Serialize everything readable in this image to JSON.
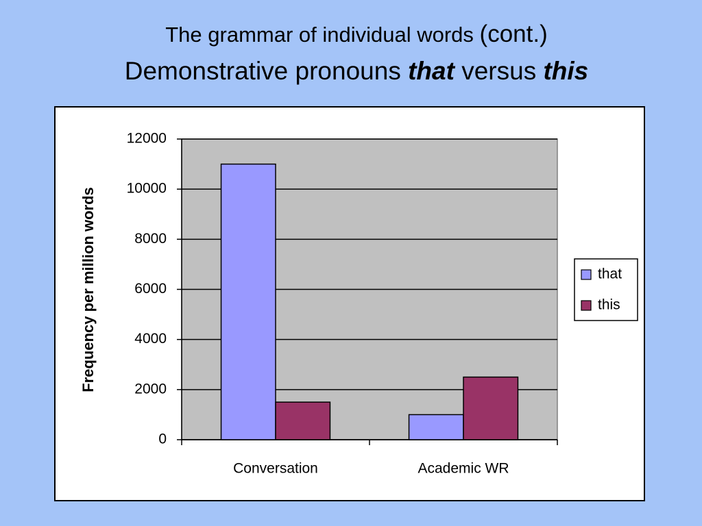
{
  "title": {
    "line1": [
      "The grammar of individual words",
      "(cont.)"
    ],
    "line2": [
      "Demonstrative pronouns",
      "that",
      "versus",
      "this"
    ]
  },
  "chart_data": {
    "type": "bar",
    "y_label": "Frequency per million words",
    "categories": [
      "Conversation",
      "Academic WR"
    ],
    "series": [
      {
        "name": "that",
        "color": "#9999ff",
        "values": [
          11000,
          1000
        ]
      },
      {
        "name": "this",
        "color": "#993366",
        "values": [
          1500,
          2500
        ]
      }
    ],
    "ylim": [
      0,
      12000
    ],
    "yticks": [
      0,
      2000,
      4000,
      6000,
      8000,
      10000,
      12000
    ],
    "grid": true,
    "legend": "right"
  }
}
